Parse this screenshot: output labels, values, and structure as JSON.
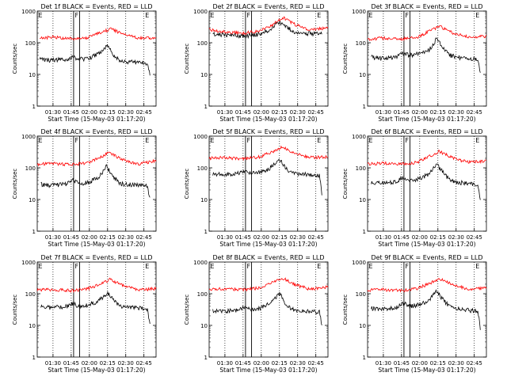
{
  "chart_data": [
    {
      "type": "line",
      "title": "Det 1f BLACK = Events, RED = LLD",
      "xlabel": "Start Time (15-May-03 01:17:20)",
      "ylabel": "Counts/sec",
      "yscale": "log",
      "ylim": [
        1,
        1000
      ],
      "xlim_minutes": [
        77,
        175
      ],
      "x_ticks": [
        "01:30",
        "01:45",
        "02:00",
        "02:15",
        "02:30",
        "02:45"
      ],
      "y_ticks": [
        "1",
        "10",
        "100",
        "1000"
      ],
      "region_labels": [
        "E",
        "F",
        "E"
      ],
      "dotted_markers_minutes": [
        90,
        105,
        120,
        135,
        150,
        165
      ],
      "solid_markers_minutes": [
        107,
        112
      ],
      "events_curve": {
        "t_minutes": [
          79,
          88,
          100,
          106,
          112,
          120,
          128,
          135,
          140,
          145,
          150,
          160,
          168,
          170
        ],
        "counts": [
          30,
          28,
          30,
          35,
          30,
          32,
          45,
          85,
          40,
          28,
          25,
          24,
          22,
          10
        ]
      },
      "lld_curve": {
        "t_minutes": [
          79,
          90,
          105,
          118,
          130,
          138,
          148,
          160,
          175
        ],
        "counts": [
          140,
          150,
          135,
          145,
          210,
          280,
          180,
          140,
          145
        ]
      },
      "series": [
        {
          "name": "Events",
          "color": "#000000"
        },
        {
          "name": "LLD",
          "color": "#ff0000"
        }
      ]
    },
    {
      "type": "line",
      "title": "Det 2f BLACK = Events, RED = LLD",
      "xlabel": "Start Time (15-May-03 01:17:20)",
      "ylabel": "Counts/sec",
      "yscale": "log",
      "ylim": [
        1,
        1000
      ],
      "xlim_minutes": [
        77,
        175
      ],
      "x_ticks": [
        "01:30",
        "01:45",
        "02:00",
        "02:15",
        "02:30",
        "02:45"
      ],
      "y_ticks": [
        "1",
        "10",
        "100",
        "1000"
      ],
      "region_labels": [
        "E",
        "F",
        "E"
      ],
      "dotted_markers_minutes": [
        90,
        105,
        120,
        135,
        150,
        165
      ],
      "solid_markers_minutes": [
        107,
        112
      ],
      "events_curve": {
        "t_minutes": [
          80,
          90,
          105,
          115,
          125,
          135,
          145,
          150,
          170
        ],
        "counts": [
          190,
          175,
          165,
          175,
          240,
          430,
          250,
          200,
          190
        ]
      },
      "lld_curve": {
        "t_minutes": [
          77,
          90,
          105,
          118,
          130,
          138,
          148,
          160,
          175
        ],
        "counts": [
          260,
          220,
          200,
          230,
          380,
          620,
          380,
          260,
          290
        ]
      },
      "series": [
        {
          "name": "Events",
          "color": "#000000"
        },
        {
          "name": "LLD",
          "color": "#ff0000"
        }
      ]
    },
    {
      "type": "line",
      "title": "Det 3f BLACK = Events, RED = LLD",
      "xlabel": "Start Time (15-May-03 01:17:20)",
      "ylabel": "Counts/sec",
      "yscale": "log",
      "ylim": [
        1,
        1000
      ],
      "xlim_minutes": [
        77,
        175
      ],
      "x_ticks": [
        "01:30",
        "01:45",
        "02:00",
        "02:15",
        "02:30",
        "02:45"
      ],
      "y_ticks": [
        "1",
        "10",
        "100",
        "1000"
      ],
      "region_labels": [
        "E",
        "F",
        "E"
      ],
      "dotted_markers_minutes": [
        90,
        105,
        120,
        135,
        150,
        165
      ],
      "solid_markers_minutes": [
        107,
        112
      ],
      "events_curve": {
        "t_minutes": [
          80,
          88,
          100,
          106,
          112,
          120,
          128,
          134,
          140,
          145,
          150,
          160,
          168,
          170
        ],
        "counts": [
          35,
          32,
          35,
          45,
          40,
          45,
          60,
          130,
          65,
          40,
          35,
          32,
          30,
          10
        ]
      },
      "lld_curve": {
        "t_minutes": [
          77,
          90,
          105,
          118,
          130,
          136,
          148,
          160,
          175
        ],
        "counts": [
          130,
          140,
          130,
          150,
          250,
          330,
          200,
          150,
          160
        ]
      },
      "series": [
        {
          "name": "Events",
          "color": "#000000"
        },
        {
          "name": "LLD",
          "color": "#ff0000"
        }
      ]
    },
    {
      "type": "line",
      "title": "Det 4f BLACK = Events, RED = LLD",
      "xlabel": "Start Time (15-May-03 01:17:20)",
      "ylabel": "Counts/sec",
      "yscale": "log",
      "ylim": [
        1,
        1000
      ],
      "xlim_minutes": [
        77,
        175
      ],
      "x_ticks": [
        "01:30",
        "01:45",
        "02:00",
        "02:15",
        "02:30",
        "02:45"
      ],
      "y_ticks": [
        "1",
        "10",
        "100",
        "1000"
      ],
      "region_labels": [
        "E",
        "F",
        "E"
      ],
      "dotted_markers_minutes": [
        90,
        105,
        120,
        135,
        150,
        165
      ],
      "solid_markers_minutes": [
        107,
        112
      ],
      "events_curve": {
        "t_minutes": [
          80,
          88,
          100,
          106,
          112,
          120,
          128,
          134,
          140,
          145,
          150,
          160,
          168,
          170
        ],
        "counts": [
          30,
          28,
          30,
          40,
          32,
          35,
          50,
          110,
          50,
          32,
          30,
          28,
          26,
          10
        ]
      },
      "lld_curve": {
        "t_minutes": [
          77,
          90,
          105,
          118,
          130,
          136,
          148,
          160,
          175
        ],
        "counts": [
          130,
          135,
          125,
          140,
          220,
          300,
          180,
          130,
          170
        ]
      },
      "series": [
        {
          "name": "Events",
          "color": "#000000"
        },
        {
          "name": "LLD",
          "color": "#ff0000"
        }
      ]
    },
    {
      "type": "line",
      "title": "Det 5f BLACK = Events, RED = LLD",
      "xlabel": "Start Time (15-May-03 01:17:20)",
      "ylabel": "Counts/sec",
      "yscale": "log",
      "ylim": [
        1,
        1000
      ],
      "xlim_minutes": [
        77,
        175
      ],
      "x_ticks": [
        "01:30",
        "01:45",
        "02:00",
        "02:15",
        "02:30",
        "02:45"
      ],
      "y_ticks": [
        "1",
        "10",
        "100",
        "1000"
      ],
      "region_labels": [
        "E",
        "F",
        "E"
      ],
      "dotted_markers_minutes": [
        90,
        105,
        120,
        135,
        150,
        165
      ],
      "solid_markers_minutes": [
        107,
        112
      ],
      "events_curve": {
        "t_minutes": [
          80,
          90,
          100,
          106,
          112,
          120,
          128,
          135,
          140,
          145,
          150,
          160,
          168,
          170
        ],
        "counts": [
          65,
          60,
          65,
          75,
          65,
          75,
          100,
          190,
          100,
          70,
          65,
          60,
          55,
          15
        ]
      },
      "lld_curve": {
        "t_minutes": [
          77,
          90,
          105,
          118,
          130,
          137,
          148,
          160,
          175
        ],
        "counts": [
          200,
          210,
          190,
          220,
          320,
          470,
          280,
          210,
          220
        ]
      },
      "series": [
        {
          "name": "Events",
          "color": "#000000"
        },
        {
          "name": "LLD",
          "color": "#ff0000"
        }
      ]
    },
    {
      "type": "line",
      "title": "Det 6f BLACK = Events, RED = LLD",
      "xlabel": "Start Time (15-May-03 01:17:20)",
      "ylabel": "Counts/sec",
      "yscale": "log",
      "ylim": [
        1,
        1000
      ],
      "xlim_minutes": [
        77,
        175
      ],
      "x_ticks": [
        "01:30",
        "01:45",
        "02:00",
        "02:15",
        "02:30",
        "02:45"
      ],
      "y_ticks": [
        "1",
        "10",
        "100",
        "1000"
      ],
      "region_labels": [
        "E",
        "F",
        "E"
      ],
      "dotted_markers_minutes": [
        90,
        105,
        120,
        135,
        150,
        165
      ],
      "solid_markers_minutes": [
        107,
        112
      ],
      "events_curve": {
        "t_minutes": [
          80,
          88,
          100,
          106,
          112,
          120,
          128,
          134,
          140,
          145,
          150,
          160,
          168,
          170
        ],
        "counts": [
          35,
          33,
          35,
          48,
          40,
          45,
          65,
          130,
          65,
          40,
          35,
          32,
          30,
          10
        ]
      },
      "lld_curve": {
        "t_minutes": [
          77,
          90,
          105,
          118,
          130,
          136,
          148,
          160,
          175
        ],
        "counts": [
          130,
          140,
          130,
          150,
          250,
          330,
          200,
          150,
          160
        ]
      },
      "series": [
        {
          "name": "Events",
          "color": "#000000"
        },
        {
          "name": "LLD",
          "color": "#ff0000"
        }
      ]
    },
    {
      "type": "line",
      "title": "Det 7f BLACK = Events, RED = LLD",
      "xlabel": "Start Time (15-May-03 01:17:20)",
      "ylabel": "Counts/sec",
      "yscale": "log",
      "ylim": [
        1,
        1000
      ],
      "xlim_minutes": [
        77,
        175
      ],
      "x_ticks": [
        "01:30",
        "01:45",
        "02:00",
        "02:15",
        "02:30",
        "02:45"
      ],
      "y_ticks": [
        "1",
        "10",
        "100",
        "1000"
      ],
      "region_labels": [
        "E",
        "F",
        "E"
      ],
      "dotted_markers_minutes": [
        90,
        105,
        120,
        135,
        150,
        165
      ],
      "solid_markers_minutes": [
        107,
        112
      ],
      "events_curve": {
        "t_minutes": [
          80,
          88,
          100,
          106,
          112,
          120,
          128,
          135,
          140,
          145,
          150,
          160,
          168,
          170
        ],
        "counts": [
          38,
          36,
          38,
          48,
          40,
          45,
          60,
          110,
          60,
          40,
          38,
          35,
          32,
          10
        ]
      },
      "lld_curve": {
        "t_minutes": [
          77,
          90,
          105,
          118,
          130,
          137,
          148,
          160,
          175
        ],
        "counts": [
          130,
          135,
          125,
          140,
          210,
          280,
          180,
          130,
          145
        ]
      },
      "series": [
        {
          "name": "Events",
          "color": "#000000"
        },
        {
          "name": "LLD",
          "color": "#ff0000"
        }
      ]
    },
    {
      "type": "line",
      "title": "Det 8f BLACK = Events, RED = LLD",
      "xlabel": "Start Time (15-May-03 01:17:20)",
      "ylabel": "Counts/sec",
      "yscale": "log",
      "ylim": [
        1,
        1000
      ],
      "xlim_minutes": [
        77,
        175
      ],
      "x_ticks": [
        "01:30",
        "01:45",
        "02:00",
        "02:15",
        "02:30",
        "02:45"
      ],
      "y_ticks": [
        "1",
        "10",
        "100",
        "1000"
      ],
      "region_labels": [
        "E",
        "F",
        "E"
      ],
      "dotted_markers_minutes": [
        90,
        105,
        120,
        135,
        150,
        165
      ],
      "solid_markers_minutes": [
        107,
        112
      ],
      "events_curve": {
        "t_minutes": [
          80,
          88,
          100,
          106,
          112,
          120,
          128,
          135,
          140,
          145,
          150,
          160,
          168,
          170
        ],
        "counts": [
          30,
          28,
          30,
          38,
          32,
          35,
          50,
          100,
          50,
          32,
          30,
          28,
          26,
          10
        ]
      },
      "lld_curve": {
        "t_minutes": [
          77,
          90,
          105,
          118,
          130,
          137,
          148,
          160,
          175
        ],
        "counts": [
          140,
          145,
          135,
          150,
          230,
          320,
          190,
          140,
          160
        ]
      },
      "series": [
        {
          "name": "Events",
          "color": "#000000"
        },
        {
          "name": "LLD",
          "color": "#ff0000"
        }
      ]
    },
    {
      "type": "line",
      "title": "Det 9f BLACK = Events, RED = LLD",
      "xlabel": "Start Time (15-May-03 01:17:20)",
      "ylabel": "Counts/sec",
      "yscale": "log",
      "ylim": [
        1,
        1000
      ],
      "xlim_minutes": [
        77,
        175
      ],
      "x_ticks": [
        "01:30",
        "01:45",
        "02:00",
        "02:15",
        "02:30",
        "02:45"
      ],
      "y_ticks": [
        "1",
        "10",
        "100",
        "1000"
      ],
      "region_labels": [
        "E",
        "F",
        "E"
      ],
      "dotted_markers_minutes": [
        90,
        105,
        120,
        135,
        150,
        165
      ],
      "solid_markers_minutes": [
        107,
        112
      ],
      "events_curve": {
        "t_minutes": [
          80,
          88,
          100,
          106,
          112,
          120,
          128,
          134,
          140,
          145,
          150,
          160,
          168,
          170
        ],
        "counts": [
          35,
          33,
          35,
          50,
          40,
          45,
          65,
          120,
          60,
          38,
          35,
          30,
          28,
          8
        ]
      },
      "lld_curve": {
        "t_minutes": [
          77,
          90,
          105,
          118,
          130,
          136,
          148,
          160,
          175
        ],
        "counts": [
          130,
          135,
          125,
          145,
          230,
          300,
          190,
          140,
          150
        ]
      },
      "series": [
        {
          "name": "Events",
          "color": "#000000"
        },
        {
          "name": "LLD",
          "color": "#ff0000"
        }
      ]
    }
  ]
}
